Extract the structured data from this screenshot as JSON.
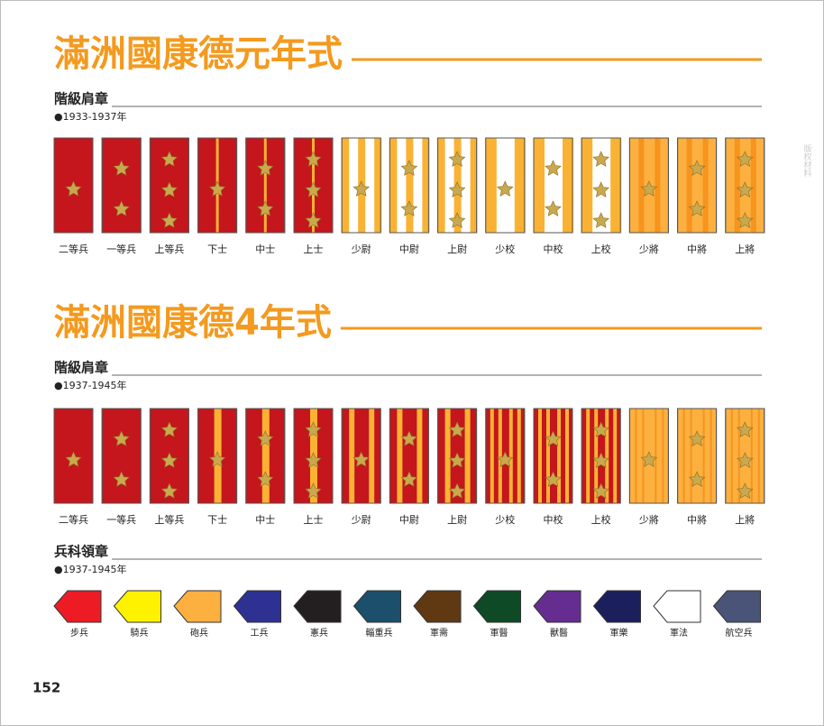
{
  "sections": [
    {
      "title": "滿洲國康德元年式",
      "subtitle": "階級肩章",
      "period": "●1933-1937年",
      "ranks": [
        "二等兵",
        "一等兵",
        "上等兵",
        "下士",
        "中士",
        "上士",
        "少尉",
        "中尉",
        "上尉",
        "少校",
        "中校",
        "上校",
        "少將",
        "中將",
        "上將"
      ]
    },
    {
      "title": "滿洲國康德4年式",
      "subtitle": "階級肩章",
      "period": "●1937-1945年",
      "ranks": [
        "二等兵",
        "一等兵",
        "上等兵",
        "下士",
        "中士",
        "上士",
        "少尉",
        "中尉",
        "上尉",
        "少校",
        "中校",
        "上校",
        "少將",
        "中將",
        "上將"
      ]
    }
  ],
  "collar": {
    "subtitle": "兵科領章",
    "period": "●1937-1945年",
    "branches": [
      "步兵",
      "騎兵",
      "砲兵",
      "工兵",
      "憲兵",
      "輜重兵",
      "軍需",
      "軍醫",
      "獸醫",
      "軍樂",
      "軍法",
      "航空兵"
    ]
  },
  "watermark": "版权材料",
  "page_number": "152"
}
